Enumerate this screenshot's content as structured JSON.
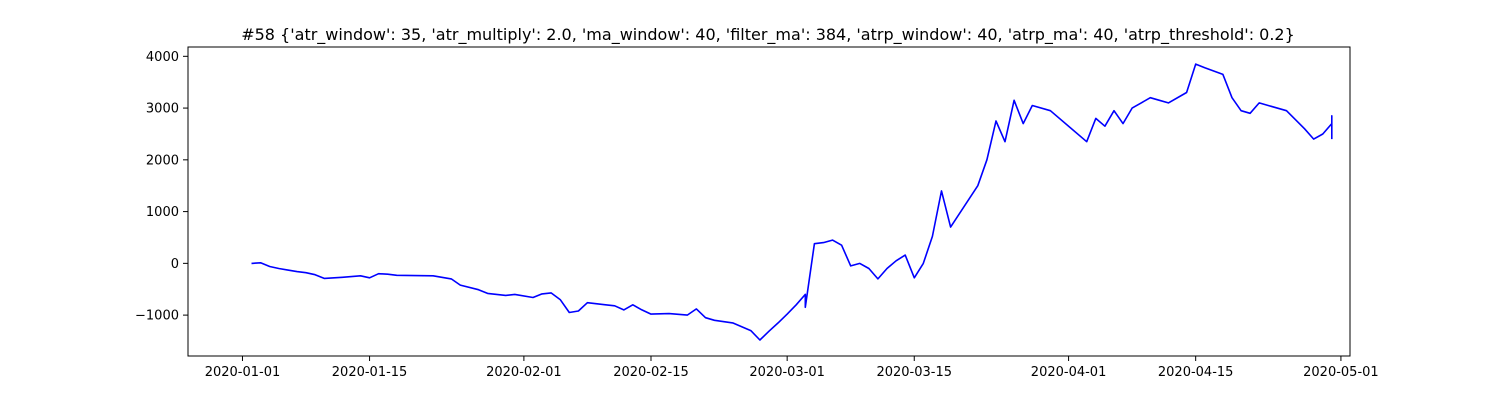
{
  "chart_data": {
    "type": "line",
    "title": "#58 {'atr_window': 35, 'atr_multiply': 2.0, 'ma_window': 40, 'filter_ma': 384, 'atrp_window': 40, 'atrp_ma': 40, 'atrp_threshold': 0.2}",
    "xlabel": "",
    "ylabel": "",
    "x_axis_type": "date",
    "xlim": [
      "2019-12-26",
      "2020-05-02"
    ],
    "ylim": [
      -1790,
      4180
    ],
    "x_ticks": [
      "2020-01-01",
      "2020-01-15",
      "2020-02-01",
      "2020-02-15",
      "2020-03-01",
      "2020-03-15",
      "2020-04-01",
      "2020-04-15",
      "2020-05-01"
    ],
    "y_ticks": [
      -1000,
      0,
      1000,
      2000,
      3000,
      4000
    ],
    "grid": false,
    "legend": "none",
    "series": [
      {
        "color": "#0000ff",
        "points": [
          [
            "2020-01-02",
            0
          ],
          [
            "2020-01-03",
            10
          ],
          [
            "2020-01-04",
            -60
          ],
          [
            "2020-01-05",
            -100
          ],
          [
            "2020-01-06",
            -130
          ],
          [
            "2020-01-07",
            -160
          ],
          [
            "2020-01-08",
            -180
          ],
          [
            "2020-01-09",
            -220
          ],
          [
            "2020-01-10",
            -290
          ],
          [
            "2020-01-12",
            -270
          ],
          [
            "2020-01-14",
            -240
          ],
          [
            "2020-01-15",
            -280
          ],
          [
            "2020-01-16",
            -200
          ],
          [
            "2020-01-17",
            -210
          ],
          [
            "2020-01-18",
            -230
          ],
          [
            "2020-01-22",
            -240
          ],
          [
            "2020-01-24",
            -300
          ],
          [
            "2020-01-25",
            -420
          ],
          [
            "2020-01-27",
            -510
          ],
          [
            "2020-01-28",
            -580
          ],
          [
            "2020-01-30",
            -620
          ],
          [
            "2020-01-31",
            -600
          ],
          [
            "2020-02-02",
            -660
          ],
          [
            "2020-02-03",
            -590
          ],
          [
            "2020-02-04",
            -570
          ],
          [
            "2020-02-05",
            -700
          ],
          [
            "2020-02-06",
            -950
          ],
          [
            "2020-02-07",
            -920
          ],
          [
            "2020-02-08",
            -760
          ],
          [
            "2020-02-10",
            -800
          ],
          [
            "2020-02-11",
            -820
          ],
          [
            "2020-02-12",
            -900
          ],
          [
            "2020-02-13",
            -800
          ],
          [
            "2020-02-14",
            -900
          ],
          [
            "2020-02-15",
            -980
          ],
          [
            "2020-02-17",
            -970
          ],
          [
            "2020-02-19",
            -1000
          ],
          [
            "2020-02-20",
            -880
          ],
          [
            "2020-02-21",
            -1050
          ],
          [
            "2020-02-22",
            -1100
          ],
          [
            "2020-02-24",
            -1150
          ],
          [
            "2020-02-26",
            -1300
          ],
          [
            "2020-02-27",
            -1480
          ],
          [
            "2020-02-28",
            -1310
          ],
          [
            "2020-02-29",
            -1150
          ],
          [
            "2020-03-01",
            -980
          ],
          [
            "2020-03-02",
            -800
          ],
          [
            "2020-03-03",
            -600
          ],
          [
            "2020-03-03",
            -850
          ],
          [
            "2020-03-04",
            380
          ],
          [
            "2020-03-05",
            400
          ],
          [
            "2020-03-06",
            450
          ],
          [
            "2020-03-07",
            350
          ],
          [
            "2020-03-08",
            -50
          ],
          [
            "2020-03-09",
            0
          ],
          [
            "2020-03-10",
            -100
          ],
          [
            "2020-03-11",
            -300
          ],
          [
            "2020-03-12",
            -100
          ],
          [
            "2020-03-13",
            50
          ],
          [
            "2020-03-14",
            160
          ],
          [
            "2020-03-15",
            -280
          ],
          [
            "2020-03-16",
            0
          ],
          [
            "2020-03-17",
            520
          ],
          [
            "2020-03-18",
            1400
          ],
          [
            "2020-03-19",
            700
          ],
          [
            "2020-03-22",
            1500
          ],
          [
            "2020-03-23",
            2000
          ],
          [
            "2020-03-24",
            2750
          ],
          [
            "2020-03-25",
            2350
          ],
          [
            "2020-03-26",
            3150
          ],
          [
            "2020-03-27",
            2700
          ],
          [
            "2020-03-28",
            3050
          ],
          [
            "2020-03-30",
            2950
          ],
          [
            "2020-04-03",
            2350
          ],
          [
            "2020-04-04",
            2800
          ],
          [
            "2020-04-05",
            2650
          ],
          [
            "2020-04-06",
            2950
          ],
          [
            "2020-04-07",
            2700
          ],
          [
            "2020-04-08",
            3000
          ],
          [
            "2020-04-09",
            3100
          ],
          [
            "2020-04-10",
            3200
          ],
          [
            "2020-04-11",
            3150
          ],
          [
            "2020-04-12",
            3100
          ],
          [
            "2020-04-14",
            3300
          ],
          [
            "2020-04-15",
            3850
          ],
          [
            "2020-04-16",
            3780
          ],
          [
            "2020-04-18",
            3650
          ],
          [
            "2020-04-19",
            3200
          ],
          [
            "2020-04-20",
            2950
          ],
          [
            "2020-04-21",
            2900
          ],
          [
            "2020-04-22",
            3100
          ],
          [
            "2020-04-25",
            2950
          ],
          [
            "2020-04-27",
            2600
          ],
          [
            "2020-04-28",
            2400
          ],
          [
            "2020-04-29",
            2500
          ],
          [
            "2020-04-30",
            2700
          ],
          [
            "2020-04-30",
            2850
          ],
          [
            "2020-04-30",
            2400
          ]
        ]
      }
    ]
  }
}
